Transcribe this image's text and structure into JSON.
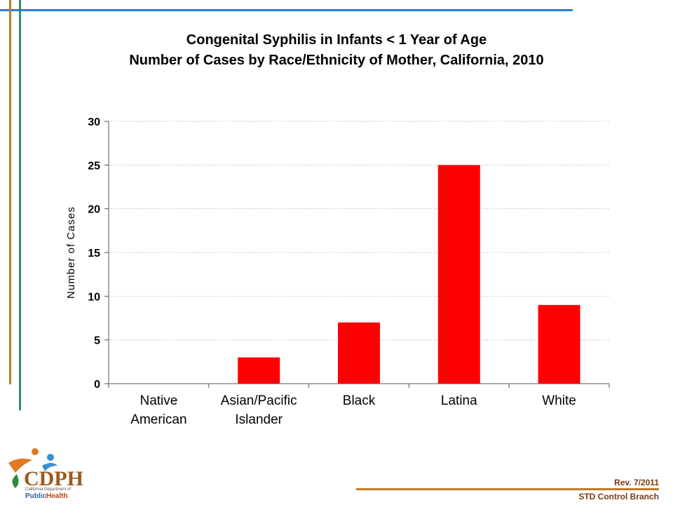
{
  "chart_data": {
    "type": "bar",
    "title": "Congenital Syphilis in Infants < 1 Year of Age",
    "subtitle": "Number of Cases by Race/Ethnicity of Mother, California, 2010",
    "xlabel": "",
    "ylabel": "Number of Cases",
    "categories": [
      [
        "Native",
        "American"
      ],
      [
        "Asian/Pacific",
        "Islander"
      ],
      [
        "Black"
      ],
      [
        "Latina"
      ],
      [
        "White"
      ]
    ],
    "values": [
      0,
      3,
      7,
      25,
      9
    ],
    "ylim": [
      0,
      30
    ],
    "yticks": [
      0,
      5,
      10,
      15,
      20,
      25,
      30
    ],
    "grid": "horizontal-dotted",
    "bar_color": "#ff0000",
    "legend": "none"
  },
  "footer": {
    "rev": "Rev. 7/2011",
    "branch": "STD Control Branch"
  },
  "logo": {
    "mark": "CDPH",
    "small": "California Department of",
    "public": "Public",
    "health": "Health"
  },
  "colors": {
    "accent_blue": "#2e7bcf",
    "accent_orange": "#c0772a",
    "accent_teal": "#2e8b7a"
  }
}
